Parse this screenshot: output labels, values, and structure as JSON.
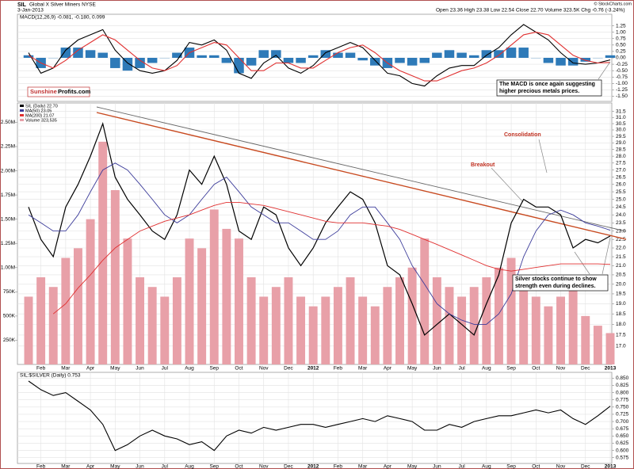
{
  "header": {
    "symbol": "SIL",
    "name": "Global X Silver Miners NYSE",
    "date": "3-Jan-2013",
    "quote": "Open 23.36 High 23.38 Low 22.54 Close 22.70 Volume 323.5K Chg -0.76 (-3.24%)",
    "credit": "© StockCharts.com"
  },
  "chart_data": [
    {
      "type": "macd",
      "title": "MACD(12,26,9) -0.081, -0.180, 0.099",
      "ylim": [
        -1.7,
        1.7
      ],
      "yticks": [
        1.25,
        {
          "value": 1,
          "label": "1.00"
        },
        0.75,
        {
          "value": 0.5,
          "label": "0.50"
        },
        0.25,
        {
          "value": 0,
          "label": "0.00"
        },
        -0.25,
        {
          "value": -0.5,
          "label": "-0.50"
        },
        -0.75,
        {
          "value": -1,
          "label": "-1.00"
        },
        -1.25,
        {
          "value": -1.5,
          "label": "-1.50"
        }
      ],
      "grid": true,
      "series": [
        {
          "color": "#000000",
          "values": [
            0.2,
            -0.6,
            -0.4,
            0.3,
            0.7,
            0.9,
            1.1,
            0.3,
            -0.2,
            -0.5,
            -0.6,
            -0.5,
            -0.1,
            0.6,
            0.5,
            0.7,
            0.3,
            -0.6,
            -0.8,
            -0.2,
            0.1,
            -0.4,
            -0.6,
            -0.3,
            0.2,
            0.4,
            0.6,
            0.4,
            -0.1,
            -0.6,
            -0.7,
            -1.0,
            -1.1,
            -0.7,
            -0.4,
            -0.3,
            -0.3,
            0.1,
            0.4,
            0.9,
            1.3,
            1.0,
            0.7,
            0.2,
            -0.2,
            -0.25,
            -0.2,
            -0.081
          ]
        },
        {
          "color": "#e03030",
          "values": [
            0.1,
            -0.2,
            -0.4,
            -0.1,
            0.3,
            0.6,
            0.9,
            0.7,
            0.3,
            -0.1,
            -0.4,
            -0.5,
            -0.3,
            0.2,
            0.4,
            0.6,
            0.5,
            0,
            -0.5,
            -0.5,
            -0.2,
            -0.2,
            -0.4,
            -0.4,
            -0.1,
            0.2,
            0.4,
            0.5,
            0.2,
            -0.2,
            -0.5,
            -0.7,
            -0.9,
            -0.9,
            -0.7,
            -0.5,
            -0.4,
            -0.2,
            0.1,
            0.5,
            0.9,
            1.0,
            0.9,
            0.5,
            0.1,
            -0.1,
            -0.2,
            -0.18
          ]
        }
      ],
      "histogram": {
        "color": "#2e7ab8",
        "values": [
          0.1,
          -0.4,
          0,
          0.4,
          0.4,
          0.3,
          0.2,
          -0.4,
          -0.5,
          -0.4,
          -0.2,
          0,
          0.2,
          0.4,
          0.1,
          0.1,
          -0.2,
          -0.6,
          -0.3,
          0.3,
          0.3,
          -0.2,
          -0.2,
          0.1,
          0.3,
          0.2,
          0.2,
          -0.1,
          -0.3,
          -0.4,
          -0.2,
          -0.3,
          -0.2,
          0.2,
          0.3,
          0.2,
          0.1,
          0.3,
          0.3,
          0.4,
          0.4,
          0,
          -0.2,
          -0.3,
          -0.3,
          -0.15,
          0,
          0.099
        ]
      },
      "annotations": [
        {
          "lines": [
            "The MACD is once again suggesting",
            "higher precious metals prices."
          ]
        }
      ],
      "logo": {
        "red": "Sunshine",
        "black": "Profits.com"
      }
    },
    {
      "type": "line",
      "log_scale": true,
      "categories": [
        null,
        "Feb",
        null,
        "Mar",
        null,
        "Apr",
        null,
        "May",
        null,
        "Jun",
        null,
        "Jul",
        null,
        "Aug",
        null,
        "Sep",
        null,
        "Oct",
        null,
        "Nov",
        null,
        "Dec",
        null,
        "2012",
        null,
        "Feb",
        null,
        "Mar",
        null,
        "Apr",
        null,
        "May",
        null,
        "Jun",
        null,
        "Jul",
        null,
        "Aug",
        null,
        "Sep",
        null,
        "Oct",
        null,
        "Nov",
        null,
        "Dec",
        null,
        "2013"
      ],
      "ylim": [
        16.2,
        32.2
      ],
      "yticks": [
        {
          "value": 17,
          "label": "17.0"
        },
        17.5,
        {
          "value": 18,
          "label": "18.0"
        },
        18.5,
        {
          "value": 19,
          "label": "19.0"
        },
        19.5,
        {
          "value": 20,
          "label": "20.0"
        },
        20.5,
        {
          "value": 21,
          "label": "21.0"
        },
        21.5,
        {
          "value": 22,
          "label": "22.0"
        },
        22.5,
        {
          "value": 23,
          "label": "23.0"
        },
        23.5,
        {
          "value": 24,
          "label": "24.0"
        },
        24.5,
        {
          "value": 25,
          "label": "25.0"
        },
        25.5,
        {
          "value": 26,
          "label": "26.0"
        },
        26.5,
        {
          "value": 27,
          "label": "27.0"
        },
        27.5,
        {
          "value": 28,
          "label": "28.0"
        },
        28.5,
        {
          "value": 29,
          "label": "29.0"
        },
        29.5,
        {
          "value": 30,
          "label": "30.0"
        },
        30.5,
        {
          "value": 31,
          "label": "31.0"
        },
        31.5
      ],
      "grid": true,
      "series": [
        {
          "name": "SIL (Daily) 22.70",
          "color": "#000000",
          "values": [
            24.5,
            22.5,
            21.5,
            24.5,
            26,
            28,
            30.5,
            26.5,
            25,
            24,
            23,
            22.5,
            24,
            27,
            26,
            28,
            26,
            23,
            22.5,
            24.5,
            24,
            22,
            21,
            22,
            23.5,
            24.5,
            25.5,
            25,
            23.5,
            21,
            20.5,
            19,
            17.5,
            18,
            18.5,
            18,
            17.5,
            19,
            20.5,
            23.5,
            25,
            24.5,
            24.5,
            24,
            22,
            22.5,
            22.3,
            22.7
          ]
        },
        {
          "name": "MA(50) 23.05",
          "color": "#3c3c9a",
          "values": [
            24,
            23.5,
            23,
            23,
            24,
            25.5,
            27,
            27.5,
            27,
            26,
            25,
            24,
            23.5,
            24,
            25,
            26,
            26.5,
            25.5,
            24.5,
            24,
            23.5,
            23.5,
            23,
            22.5,
            22.5,
            23,
            24,
            24.5,
            24.5,
            23.5,
            22.5,
            21,
            20,
            19,
            18.5,
            18.2,
            18,
            18,
            18.5,
            19.5,
            21.5,
            23,
            24,
            24.3,
            24,
            23.5,
            23.3,
            23.05
          ]
        },
        {
          "name": "MA(200) 21.07",
          "color": "#e03030",
          "values": [
            null,
            null,
            18.5,
            19,
            19.8,
            20.5,
            21.3,
            22,
            22.5,
            23,
            23.3,
            23.6,
            23.8,
            24,
            24.3,
            24.6,
            24.8,
            24.8,
            24.7,
            24.6,
            24.4,
            24.2,
            24,
            23.8,
            23.6,
            23.5,
            23.5,
            23.5,
            23.4,
            23.3,
            23.1,
            22.8,
            22.5,
            22.2,
            21.9,
            21.6,
            21.3,
            21,
            20.8,
            20.7,
            20.8,
            20.9,
            21,
            21.1,
            21.1,
            21.1,
            21.1,
            21.07
          ]
        }
      ],
      "volume": {
        "name": "Volume 323,535",
        "color": "#e8a0a8",
        "ylim": [
          0,
          2700000
        ],
        "yticks": [
          {
            "value": 250000,
            "label": "250K"
          },
          {
            "value": 500000,
            "label": "500K"
          },
          {
            "value": 750000,
            "label": "750K"
          },
          {
            "value": 1000000,
            "label": "1.00M"
          },
          {
            "value": 1250000,
            "label": "1.25M"
          },
          {
            "value": 1500000,
            "label": "1.50M"
          },
          {
            "value": 1750000,
            "label": "1.75M"
          },
          {
            "value": 2000000,
            "label": "2.00M"
          },
          {
            "value": 2250000,
            "label": "2.25M"
          },
          {
            "value": 2500000,
            "label": "2.50M"
          }
        ],
        "values": [
          700000,
          900000,
          800000,
          1100000,
          1200000,
          1500000,
          2300000,
          1800000,
          1300000,
          900000,
          800000,
          700000,
          900000,
          1300000,
          1200000,
          1600000,
          1400000,
          1300000,
          900000,
          700000,
          800000,
          900000,
          700000,
          600000,
          700000,
          800000,
          900000,
          700000,
          600000,
          800000,
          900000,
          1000000,
          1300000,
          900000,
          800000,
          700000,
          800000,
          900000,
          1000000,
          1100000,
          900000,
          700000,
          600000,
          700000,
          800000,
          500000,
          400000,
          323535
        ]
      },
      "annotations": [
        {
          "lines": [
            "Consolidation"
          ],
          "color": "#c03020"
        },
        {
          "lines": [
            "Breakout"
          ],
          "color": "#c03020"
        },
        {
          "lines": [
            "Silver stocks continue to show",
            "strength even during declines."
          ],
          "color": "#000000"
        }
      ]
    },
    {
      "type": "line",
      "title": "SIL:$SILVER (Daily) 0.753",
      "categories": [
        null,
        "Feb",
        null,
        "Mar",
        null,
        "Apr",
        null,
        "May",
        null,
        "Jun",
        null,
        "Jul",
        null,
        "Aug",
        null,
        "Sep",
        null,
        "Oct",
        null,
        "Nov",
        null,
        "Dec",
        null,
        "2012",
        null,
        "Feb",
        null,
        "Mar",
        null,
        "Apr",
        null,
        "May",
        null,
        "Jun",
        null,
        "Jul",
        null,
        "Aug",
        null,
        "Sep",
        null,
        "Oct",
        null,
        "Nov",
        null,
        "Dec",
        null,
        "2013"
      ],
      "ylim": [
        0.555,
        0.87
      ],
      "yticks": [
        0.575,
        {
          "value": 0.6,
          "label": "0.600"
        },
        0.625,
        {
          "value": 0.65,
          "label": "0.650"
        },
        0.675,
        {
          "value": 0.7,
          "label": "0.700"
        },
        0.725,
        {
          "value": 0.75,
          "label": "0.750"
        },
        0.775,
        {
          "value": 0.8,
          "label": "0.800"
        },
        0.825,
        {
          "value": 0.85,
          "label": "0.850"
        }
      ],
      "grid": true,
      "series": [
        {
          "color": "#000000",
          "values": [
            0.84,
            0.81,
            0.79,
            0.8,
            0.77,
            0.74,
            0.69,
            0.6,
            0.62,
            0.65,
            0.67,
            0.65,
            0.64,
            0.62,
            0.63,
            0.6,
            0.65,
            0.67,
            0.66,
            0.68,
            0.67,
            0.68,
            0.69,
            0.69,
            0.68,
            0.69,
            0.7,
            0.71,
            0.7,
            0.72,
            0.71,
            0.7,
            0.67,
            0.67,
            0.69,
            0.68,
            0.7,
            0.71,
            0.72,
            0.72,
            0.73,
            0.74,
            0.73,
            0.74,
            0.71,
            0.69,
            0.72,
            0.753
          ]
        }
      ]
    }
  ]
}
